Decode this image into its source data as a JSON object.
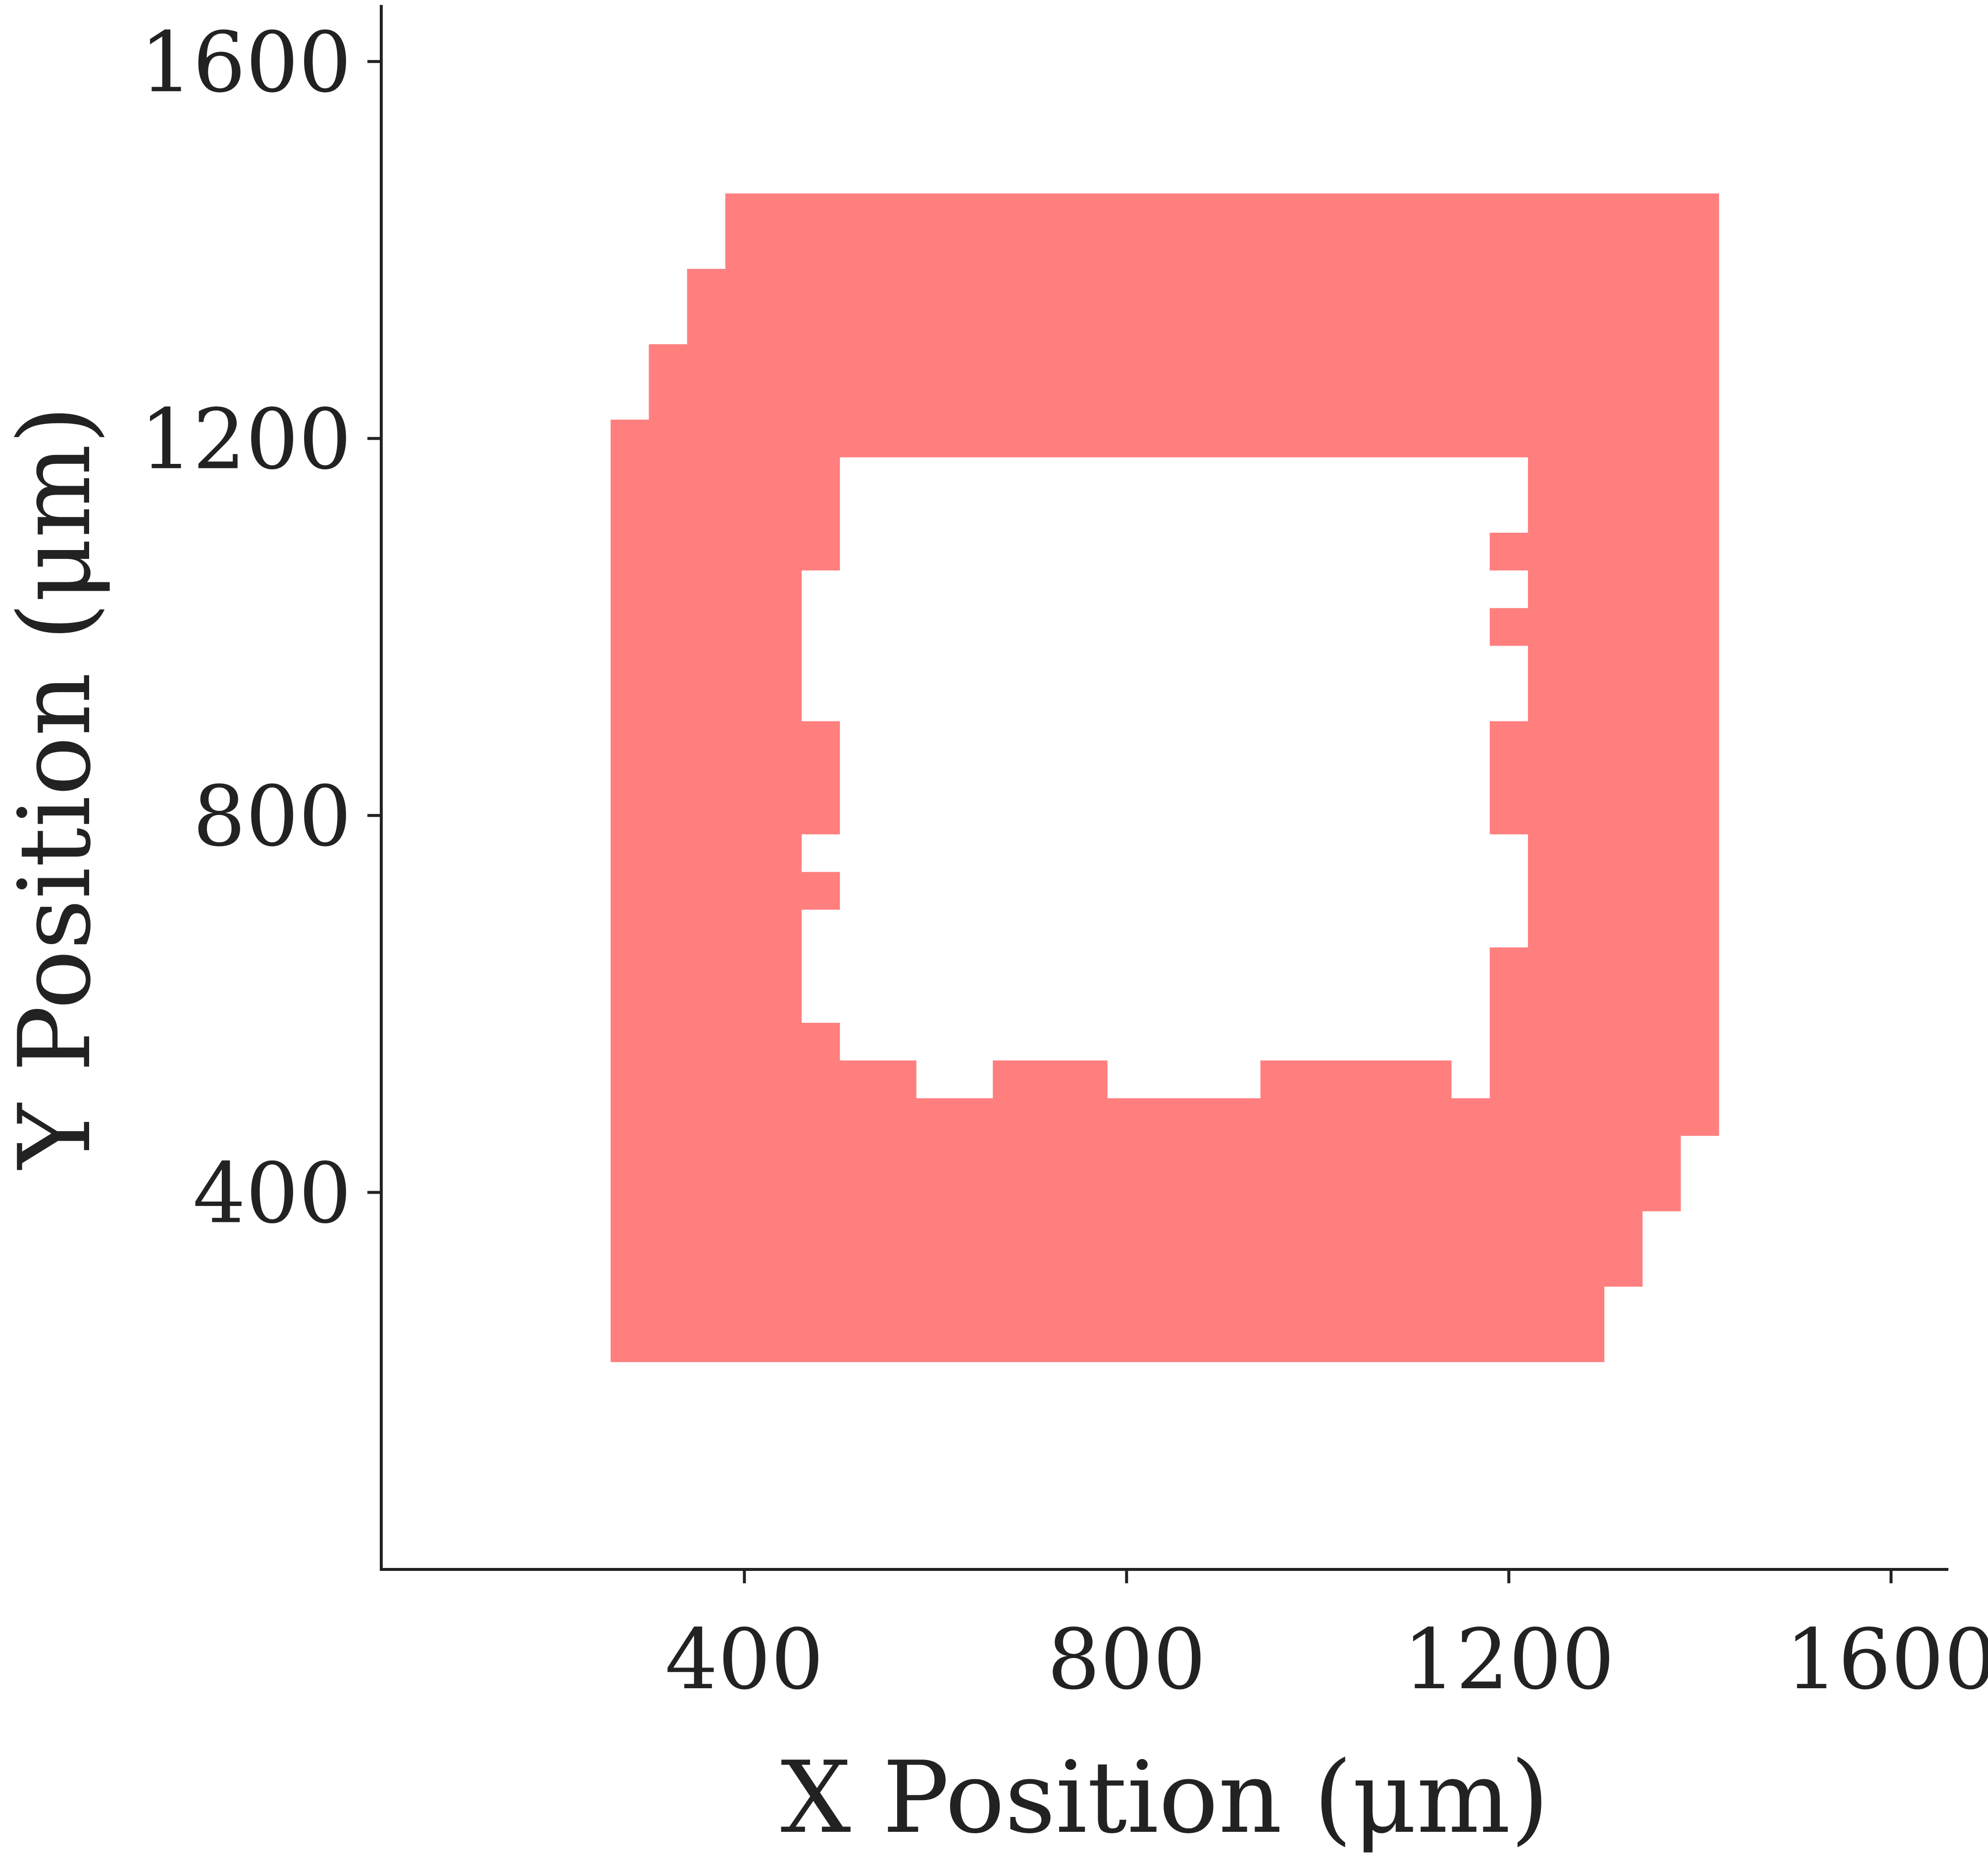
{
  "chart_data": {
    "type": "area",
    "title": "",
    "xlabel": "X Position (μm)",
    "ylabel": "Y Position (μm)",
    "xlim": [
      20,
      1660
    ],
    "ylim": [
      0,
      1660
    ],
    "grid": false,
    "legend": "none",
    "x_ticks": [
      {
        "value": 400,
        "label": "400"
      },
      {
        "value": 800,
        "label": "800"
      },
      {
        "value": 1200,
        "label": "1200"
      },
      {
        "value": 1600,
        "label": "1600"
      }
    ],
    "y_ticks": [
      {
        "value": 400,
        "label": "400"
      },
      {
        "value": 800,
        "label": "800"
      },
      {
        "value": 1200,
        "label": "1200"
      },
      {
        "value": 1600,
        "label": "1600"
      }
    ],
    "fill_color": "#ff7f7f",
    "axis_color": "#222222",
    "series": [
      {
        "outer_boundary": [
          [
            260,
            220
          ],
          [
            1300,
            220
          ],
          [
            1300,
            300
          ],
          [
            1340,
            300
          ],
          [
            1340,
            380
          ],
          [
            1380,
            380
          ],
          [
            1380,
            460
          ],
          [
            1420,
            460
          ],
          [
            1420,
            1460
          ],
          [
            380,
            1460
          ],
          [
            380,
            1380
          ],
          [
            340,
            1380
          ],
          [
            340,
            1300
          ],
          [
            300,
            1300
          ],
          [
            300,
            1220
          ],
          [
            260,
            1220
          ]
        ],
        "inner_boundary": [
          [
            500,
            1180
          ],
          [
            1220,
            1180
          ],
          [
            1220,
            1100
          ],
          [
            1180,
            1100
          ],
          [
            1180,
            1060
          ],
          [
            1220,
            1060
          ],
          [
            1220,
            1020
          ],
          [
            1180,
            1020
          ],
          [
            1180,
            980
          ],
          [
            1220,
            980
          ],
          [
            1220,
            900
          ],
          [
            1180,
            900
          ],
          [
            1180,
            780
          ],
          [
            1220,
            780
          ],
          [
            1220,
            660
          ],
          [
            1180,
            660
          ],
          [
            1180,
            500
          ],
          [
            1140,
            500
          ],
          [
            1140,
            540
          ],
          [
            940,
            540
          ],
          [
            940,
            500
          ],
          [
            780,
            500
          ],
          [
            780,
            540
          ],
          [
            660,
            540
          ],
          [
            660,
            500
          ],
          [
            580,
            500
          ],
          [
            580,
            540
          ],
          [
            500,
            540
          ],
          [
            500,
            580
          ],
          [
            460,
            580
          ],
          [
            460,
            700
          ],
          [
            500,
            700
          ],
          [
            500,
            740
          ],
          [
            460,
            740
          ],
          [
            460,
            780
          ],
          [
            500,
            780
          ],
          [
            500,
            900
          ],
          [
            460,
            900
          ],
          [
            460,
            1060
          ],
          [
            500,
            1060
          ]
        ]
      }
    ]
  }
}
